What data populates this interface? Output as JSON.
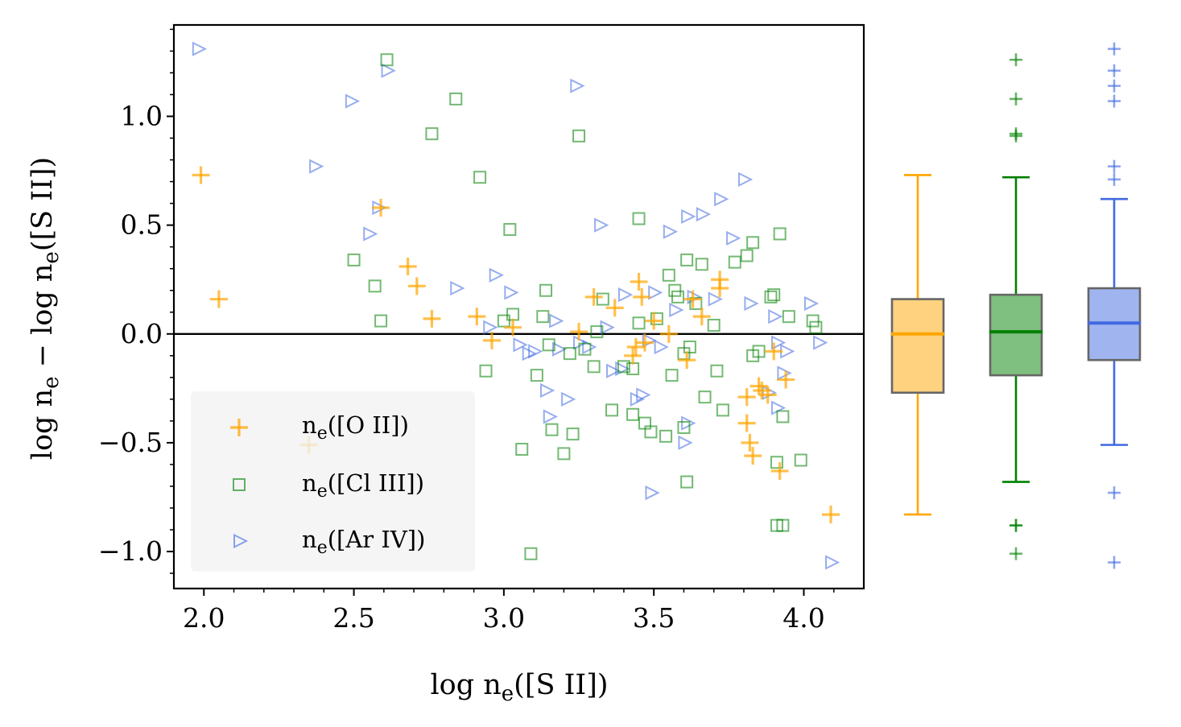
{
  "chart_data": [
    {
      "type": "scatter",
      "title": "",
      "xlabel": "log n",
      "xlabel_sub": "e",
      "xlabel_suffix": "([S II])",
      "ylabel_parts": {
        "a": "log n",
        "a_sub": "e",
        "mid": " − log n",
        "b_sub": "e",
        "b": "([S II])"
      },
      "xlim": [
        1.9,
        4.2
      ],
      "ylim": [
        -1.17,
        1.42
      ],
      "xticks": [
        2.0,
        2.5,
        3.0,
        3.5,
        4.0
      ],
      "xtick_labels": [
        "2.0",
        "2.5",
        "3.0",
        "3.5",
        "4.0"
      ],
      "yticks": [
        -1.0,
        -0.5,
        0.0,
        0.5,
        1.0
      ],
      "ytick_labels": [
        "−1.0",
        "−0.5",
        "0.0",
        "0.5",
        "1.0"
      ],
      "reference_line_y": 0.0,
      "grid": false,
      "legend_placement": "lower-left",
      "series": [
        {
          "name": "n",
          "name_sub": "e",
          "name_suffix": "([O II])",
          "marker": "plus",
          "color": "#FFA500",
          "points": [
            [
              1.99,
              0.73
            ],
            [
              2.05,
              0.16
            ],
            [
              2.35,
              -0.51
            ],
            [
              2.59,
              0.58
            ],
            [
              2.68,
              0.31
            ],
            [
              2.71,
              0.22
            ],
            [
              2.76,
              0.07
            ],
            [
              2.91,
              0.08
            ],
            [
              2.96,
              -0.03
            ],
            [
              3.03,
              0.03
            ],
            [
              3.25,
              0.01
            ],
            [
              3.3,
              0.17
            ],
            [
              3.37,
              0.12
            ],
            [
              3.43,
              -0.1
            ],
            [
              3.44,
              -0.06
            ],
            [
              3.45,
              0.24
            ],
            [
              3.46,
              0.17
            ],
            [
              3.47,
              -0.04
            ],
            [
              3.5,
              0.06
            ],
            [
              3.55,
              0.0
            ],
            [
              3.61,
              -0.12
            ],
            [
              3.63,
              0.16
            ],
            [
              3.66,
              0.08
            ],
            [
              3.72,
              0.21
            ],
            [
              3.72,
              0.25
            ],
            [
              3.81,
              -0.29
            ],
            [
              3.81,
              -0.41
            ],
            [
              3.82,
              -0.5
            ],
            [
              3.83,
              -0.56
            ],
            [
              3.85,
              -0.24
            ],
            [
              3.86,
              -0.26
            ],
            [
              3.88,
              -0.28
            ],
            [
              3.9,
              -0.08
            ],
            [
              3.92,
              -0.63
            ],
            [
              3.94,
              -0.21
            ],
            [
              4.09,
              -0.83
            ]
          ]
        },
        {
          "name": "n",
          "name_sub": "e",
          "name_suffix": "([Cl III])",
          "marker": "square",
          "color": "#008000",
          "points": [
            [
              2.5,
              0.34
            ],
            [
              2.57,
              0.22
            ],
            [
              2.59,
              0.06
            ],
            [
              2.61,
              1.26
            ],
            [
              2.84,
              1.08
            ],
            [
              2.76,
              0.92
            ],
            [
              2.92,
              0.72
            ],
            [
              2.94,
              -0.17
            ],
            [
              3.02,
              0.48
            ],
            [
              3.03,
              0.09
            ],
            [
              3.0,
              0.06
            ],
            [
              3.06,
              -0.53
            ],
            [
              3.09,
              -1.01
            ],
            [
              3.11,
              -0.19
            ],
            [
              3.14,
              0.2
            ],
            [
              3.13,
              0.08
            ],
            [
              3.15,
              -0.05
            ],
            [
              3.16,
              -0.44
            ],
            [
              3.2,
              -0.55
            ],
            [
              3.22,
              -0.09
            ],
            [
              3.23,
              -0.46
            ],
            [
              3.25,
              0.91
            ],
            [
              3.27,
              -0.07
            ],
            [
              3.3,
              -0.15
            ],
            [
              3.31,
              0.01
            ],
            [
              3.33,
              0.16
            ],
            [
              3.36,
              -0.35
            ],
            [
              3.4,
              -0.15
            ],
            [
              3.43,
              -0.16
            ],
            [
              3.43,
              -0.37
            ],
            [
              3.45,
              0.53
            ],
            [
              3.45,
              0.05
            ],
            [
              3.47,
              -0.41
            ],
            [
              3.49,
              -0.45
            ],
            [
              3.51,
              0.07
            ],
            [
              3.54,
              -0.47
            ],
            [
              3.55,
              0.27
            ],
            [
              3.56,
              -0.19
            ],
            [
              3.57,
              0.2
            ],
            [
              3.58,
              0.17
            ],
            [
              3.6,
              -0.09
            ],
            [
              3.6,
              -0.43
            ],
            [
              3.61,
              0.34
            ],
            [
              3.61,
              -0.68
            ],
            [
              3.62,
              -0.06
            ],
            [
              3.64,
              0.14
            ],
            [
              3.66,
              0.32
            ],
            [
              3.67,
              -0.29
            ],
            [
              3.7,
              0.04
            ],
            [
              3.71,
              -0.17
            ],
            [
              3.73,
              -0.35
            ],
            [
              3.77,
              0.33
            ],
            [
              3.81,
              0.36
            ],
            [
              3.83,
              0.42
            ],
            [
              3.83,
              -0.1
            ],
            [
              3.85,
              -0.08
            ],
            [
              3.89,
              0.17
            ],
            [
              3.9,
              0.18
            ],
            [
              3.91,
              -0.59
            ],
            [
              3.91,
              -0.88
            ],
            [
              3.92,
              0.46
            ],
            [
              3.93,
              -0.88
            ],
            [
              3.93,
              -0.38
            ],
            [
              3.95,
              0.08
            ],
            [
              3.99,
              -0.58
            ],
            [
              4.03,
              0.06
            ],
            [
              4.04,
              0.03
            ]
          ]
        },
        {
          "name": "n",
          "name_sub": "e",
          "name_suffix": "([Ar IV])",
          "marker": "triangle-right",
          "color": "#4169E1",
          "points": [
            [
              1.98,
              1.31
            ],
            [
              2.37,
              0.77
            ],
            [
              2.49,
              1.07
            ],
            [
              2.55,
              0.46
            ],
            [
              2.58,
              0.58
            ],
            [
              2.61,
              1.21
            ],
            [
              2.84,
              0.21
            ],
            [
              2.95,
              0.03
            ],
            [
              2.97,
              0.27
            ],
            [
              3.02,
              0.19
            ],
            [
              3.05,
              -0.05
            ],
            [
              3.08,
              -0.09
            ],
            [
              3.1,
              -0.08
            ],
            [
              3.14,
              -0.26
            ],
            [
              3.15,
              -0.38
            ],
            [
              3.17,
              0.06
            ],
            [
              3.18,
              -0.07
            ],
            [
              3.21,
              -0.3
            ],
            [
              3.24,
              1.14
            ],
            [
              3.25,
              -0.04
            ],
            [
              3.28,
              -0.06
            ],
            [
              3.32,
              0.5
            ],
            [
              3.34,
              0.03
            ],
            [
              3.36,
              -0.17
            ],
            [
              3.39,
              -0.16
            ],
            [
              3.4,
              0.18
            ],
            [
              3.44,
              -0.3
            ],
            [
              3.46,
              -0.28
            ],
            [
              3.48,
              -0.03
            ],
            [
              3.49,
              -0.73
            ],
            [
              3.5,
              0.19
            ],
            [
              3.52,
              -0.06
            ],
            [
              3.55,
              0.47
            ],
            [
              3.57,
              0.11
            ],
            [
              3.6,
              -0.5
            ],
            [
              3.61,
              0.54
            ],
            [
              3.61,
              -0.41
            ],
            [
              3.63,
              0.17
            ],
            [
              3.66,
              0.55
            ],
            [
              3.7,
              0.16
            ],
            [
              3.72,
              0.62
            ],
            [
              3.76,
              0.44
            ],
            [
              3.8,
              0.71
            ],
            [
              3.82,
              0.14
            ],
            [
              3.88,
              -0.27
            ],
            [
              3.9,
              0.08
            ],
            [
              3.91,
              -0.04
            ],
            [
              3.91,
              -0.34
            ],
            [
              3.93,
              -0.18
            ],
            [
              3.94,
              -0.08
            ],
            [
              4.02,
              0.14
            ],
            [
              4.05,
              -0.04
            ],
            [
              4.09,
              -1.05
            ]
          ]
        }
      ]
    },
    {
      "type": "box",
      "title": "",
      "ylim": [
        -1.17,
        1.42
      ],
      "shares_y_axis_with": 0,
      "boxes": [
        {
          "q1": -0.27,
          "median": 0.0,
          "q3": 0.16,
          "whisker_low": -0.83,
          "whisker_high": 0.73,
          "outliers": [],
          "color": "#FFA500",
          "fill": "#FFD27F"
        },
        {
          "q1": -0.19,
          "median": 0.01,
          "q3": 0.18,
          "whisker_low": -0.68,
          "whisker_high": 0.72,
          "outliers": [
            1.26,
            1.08,
            0.92,
            0.91,
            -0.88,
            -0.88,
            -1.01
          ],
          "color": "#008000",
          "fill": "#7FBF7F"
        },
        {
          "q1": -0.12,
          "median": 0.05,
          "q3": 0.21,
          "whisker_low": -0.51,
          "whisker_high": 0.62,
          "outliers": [
            1.31,
            1.21,
            1.14,
            1.07,
            0.77,
            0.71,
            -0.73,
            -1.05
          ],
          "color": "#4169E1",
          "fill": "#A0B4F0"
        }
      ]
    }
  ]
}
